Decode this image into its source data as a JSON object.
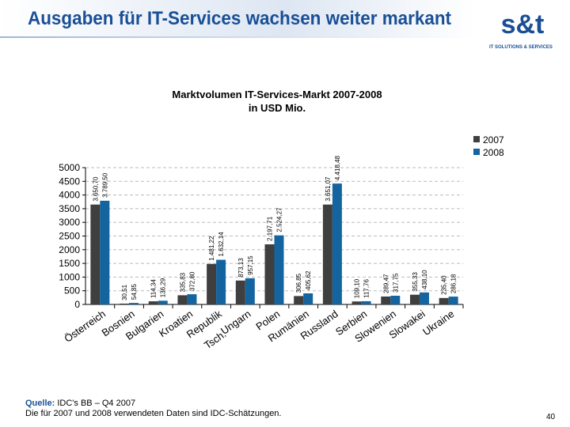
{
  "header": {
    "title": "Ausgaben für IT-Services wachsen weiter markant",
    "logo_text": "s&t",
    "logo_tagline": "IT SOLUTIONS & SERVICES"
  },
  "footer": {
    "source_label": "Quelle:",
    "source": "IDC's BB – Q4 2007",
    "note": "Die für 2007 und 2008 verwendeten Daten sind IDC-Schätzungen.",
    "page": "40"
  },
  "chart_data": {
    "type": "bar",
    "title": "Marktvolumen IT-Services-Markt 2007-2008",
    "subtitle": "in USD Mio.",
    "categories": [
      "Österreich",
      "Bosnien",
      "Bulgarien",
      "Kroatien",
      "Tsch. Republik",
      "Ungarn",
      "Polen",
      "Rumänien",
      "Russland",
      "Serbien",
      "Slowenien",
      "Slowakei",
      "Ukraine"
    ],
    "series": [
      {
        "name": "2007",
        "color": "#3f3f3f",
        "values": [
          3650.7,
          30.51,
          114.34,
          335.83,
          1481.22,
          873.13,
          2197.71,
          306.85,
          3651.07,
          109.1,
          289.47,
          355.33,
          235.4
        ],
        "labels": [
          "3.650,70",
          "30,51",
          "114,34",
          "335,83",
          "1.481,22",
          "873,13",
          "2.197,71",
          "306,85",
          "3.651,07",
          "109,10",
          "289,47",
          "355,33",
          "235,40"
        ]
      },
      {
        "name": "2008",
        "color": "#1464a0",
        "values": [
          3789.5,
          54.85,
          136.29,
          372.8,
          1632.14,
          957.15,
          2524.27,
          405.62,
          4418.48,
          117.76,
          317.75,
          438.1,
          286.18
        ],
        "labels": [
          "3.789,50",
          "54,85",
          "136,29",
          "372,80",
          "1.632,14",
          "957,15",
          "2.524,27",
          "405,62",
          "4.418,48",
          "117,76",
          "317,75",
          "438,10",
          "286,18"
        ]
      }
    ],
    "yticks": [
      "0",
      "500",
      "1000",
      "1500",
      "2000",
      "2500",
      "3000",
      "3500",
      "4000",
      "4500",
      "5000"
    ],
    "ylim": [
      0,
      5000
    ],
    "grid": true,
    "legend": "top-right"
  }
}
